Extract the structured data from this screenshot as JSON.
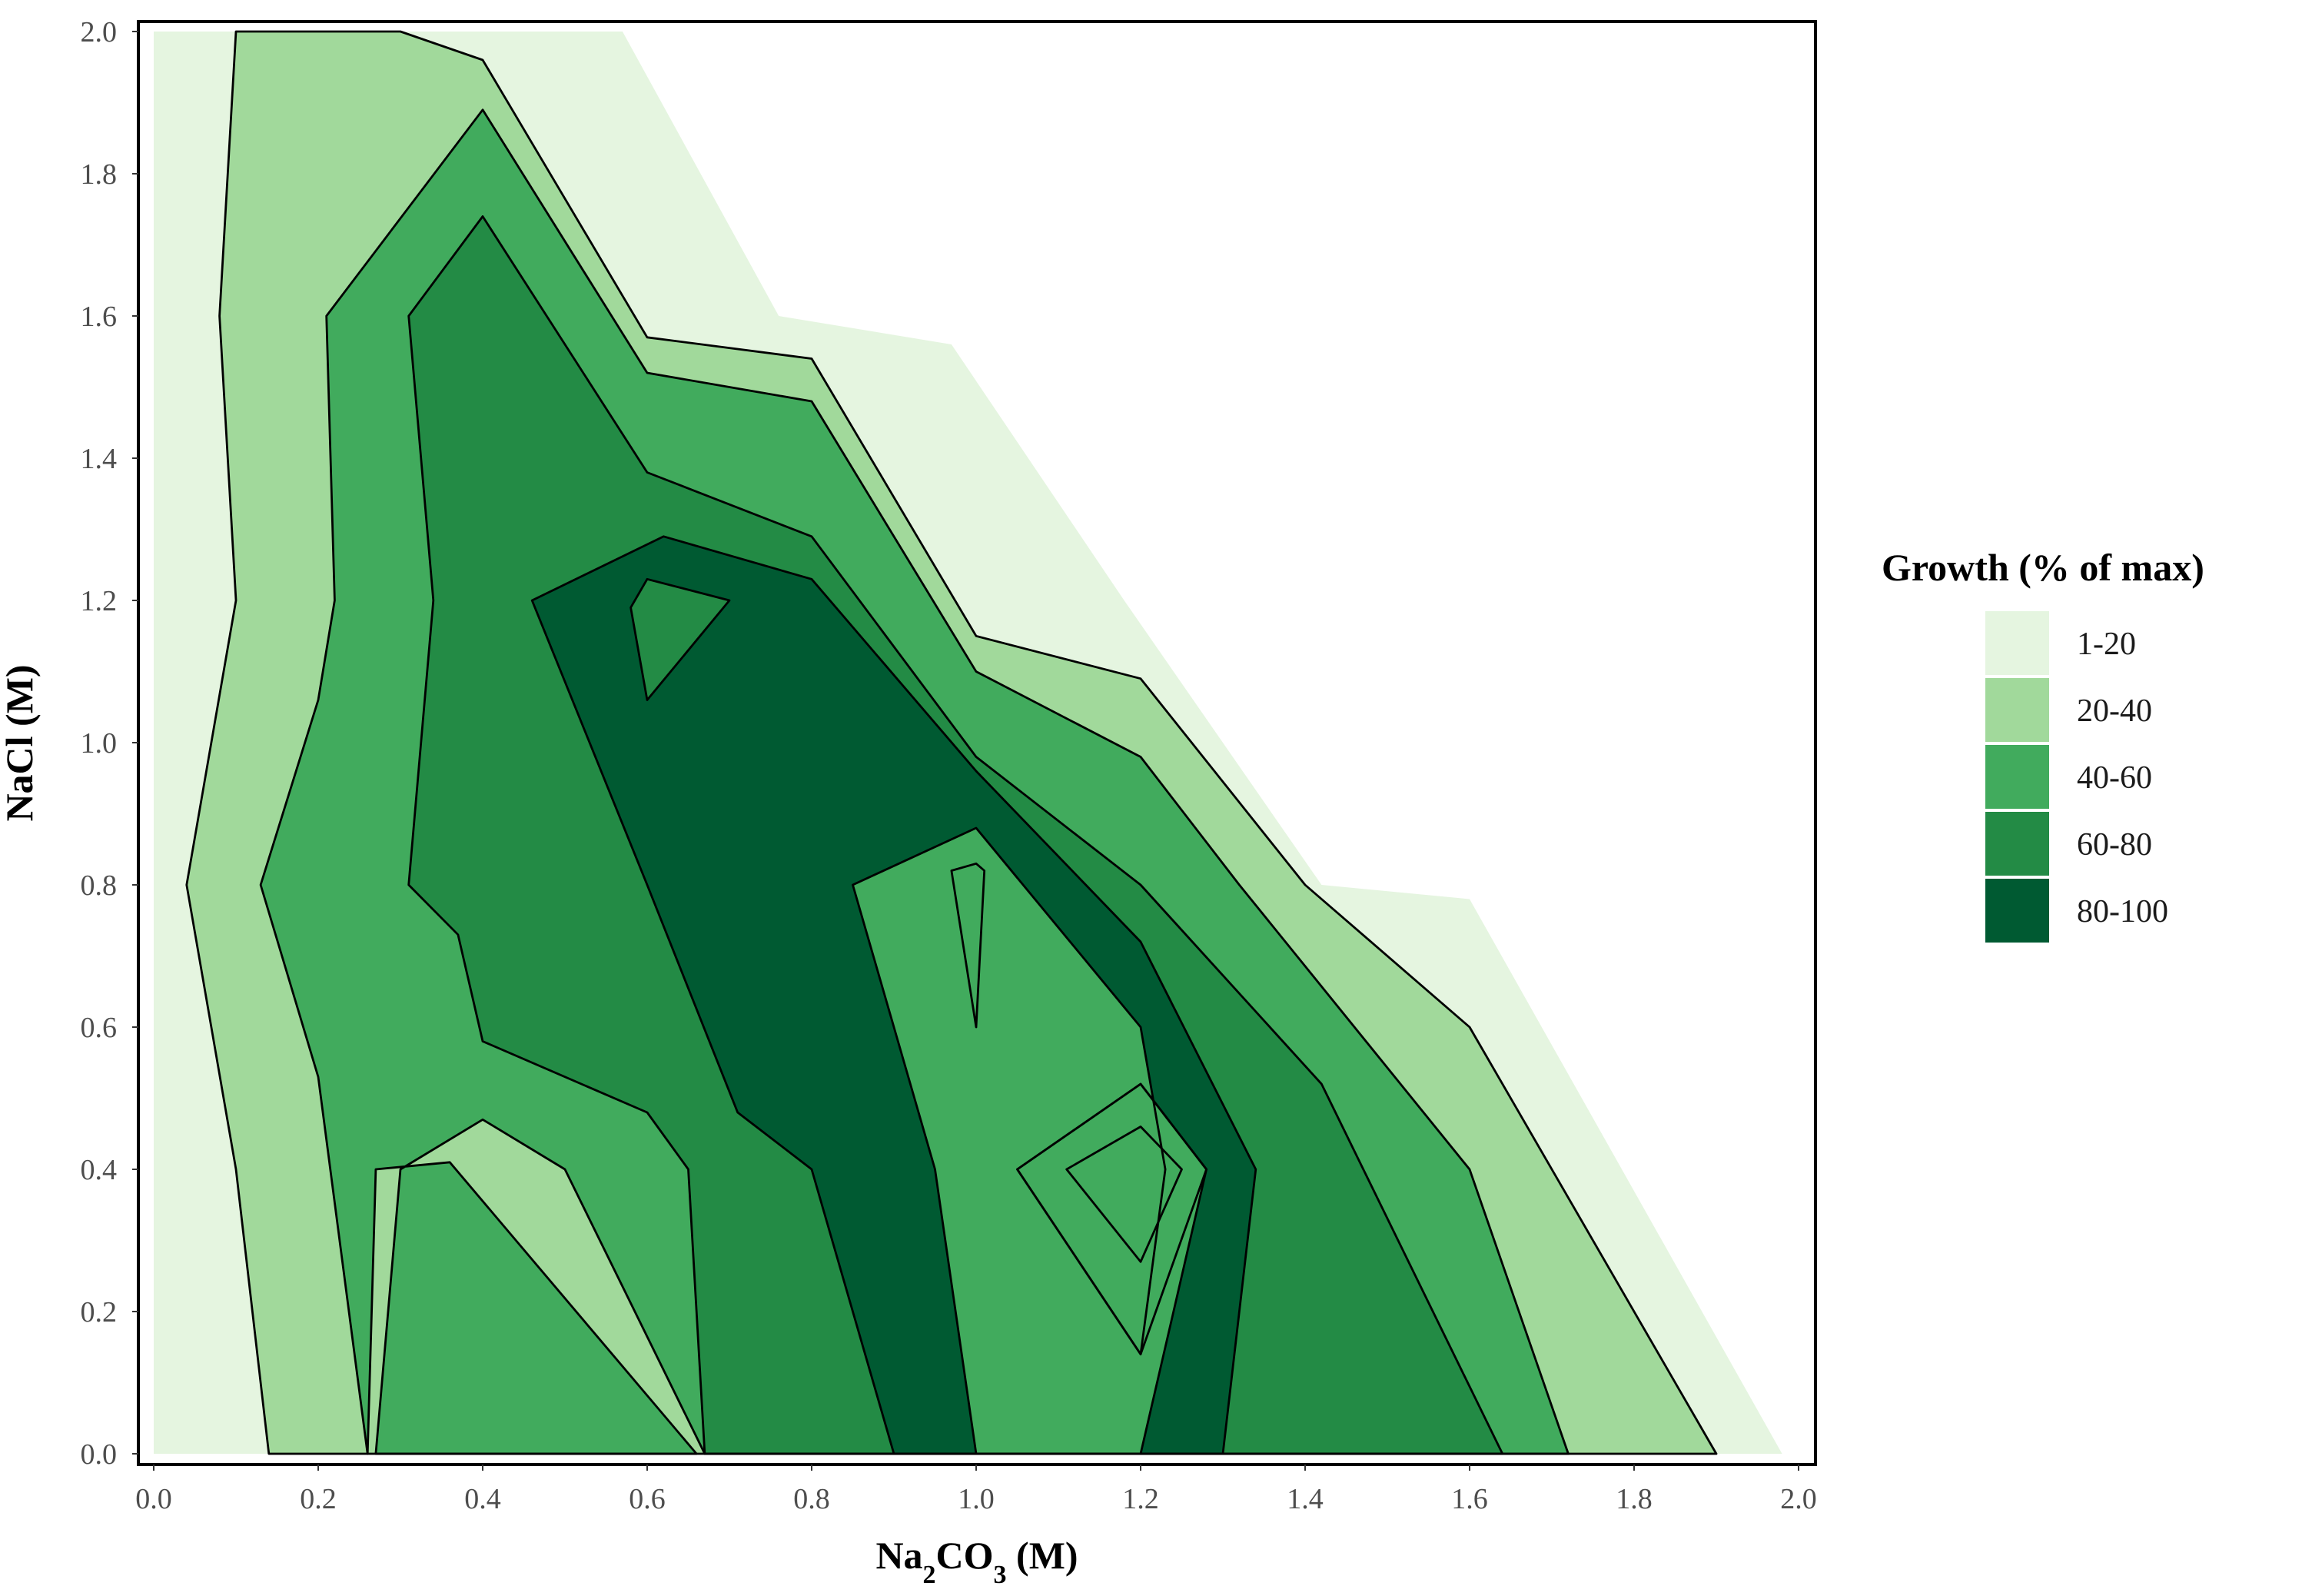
{
  "chart_data": {
    "type": "contour",
    "xlabel_parts": [
      "Na",
      "2",
      "CO",
      "3",
      " (M)"
    ],
    "ylabel": "NaCl (M)",
    "xlim": [
      0.0,
      2.0
    ],
    "ylim": [
      0.0,
      2.0
    ],
    "x_ticks": [
      "0.0",
      "0.2",
      "0.4",
      "0.6",
      "0.8",
      "1.0",
      "1.2",
      "1.4",
      "1.6",
      "1.8",
      "2.0"
    ],
    "y_ticks": [
      "0.0",
      "0.2",
      "0.4",
      "0.6",
      "0.8",
      "1.0",
      "1.2",
      "1.4",
      "1.6",
      "1.8",
      "2.0"
    ],
    "grid": false,
    "legend": {
      "title": "Growth (% of max)",
      "position": "right",
      "levels": [
        {
          "label": "1-20",
          "color": "#e5f5e0"
        },
        {
          "label": "20-40",
          "color": "#a1d99b"
        },
        {
          "label": "40-60",
          "color": "#41ab5d"
        },
        {
          "label": "60-80",
          "color": "#238b45"
        },
        {
          "label": "80-100",
          "color": "#005a32"
        }
      ]
    },
    "bands": [
      {
        "level": "1-20",
        "color": "#e5f5e0",
        "polygons": [
          [
            [
              0.0,
              2.0
            ],
            [
              0.57,
              2.0
            ],
            [
              0.76,
              1.6
            ],
            [
              0.97,
              1.56
            ],
            [
              1.18,
              1.2
            ],
            [
              1.42,
              0.8
            ],
            [
              1.6,
              0.78
            ],
            [
              1.98,
              0.0
            ],
            [
              0.0,
              0.0
            ]
          ]
        ]
      },
      {
        "level": "20-40",
        "color": "#a1d99b",
        "polygons": [
          [
            [
              0.1,
              2.0
            ],
            [
              0.3,
              2.0
            ],
            [
              0.4,
              1.96
            ],
            [
              0.6,
              1.57
            ],
            [
              0.8,
              1.54
            ],
            [
              1.0,
              1.15
            ],
            [
              1.2,
              1.09
            ],
            [
              1.4,
              0.8
            ],
            [
              1.6,
              0.6
            ],
            [
              1.9,
              0.0
            ],
            [
              0.14,
              0.0
            ],
            [
              0.1,
              0.4
            ],
            [
              0.04,
              0.8
            ],
            [
              0.1,
              1.2
            ],
            [
              0.08,
              1.6
            ]
          ]
        ]
      },
      {
        "level": "40-60",
        "color": "#41ab5d",
        "polygons": [
          [
            [
              0.4,
              1.89
            ],
            [
              0.6,
              1.52
            ],
            [
              0.8,
              1.48
            ],
            [
              1.0,
              1.1
            ],
            [
              1.2,
              0.98
            ],
            [
              1.32,
              0.8
            ],
            [
              1.6,
              0.4
            ],
            [
              1.72,
              0.0
            ],
            [
              0.67,
              0.0
            ],
            [
              0.5,
              0.4
            ],
            [
              0.4,
              0.47
            ],
            [
              0.3,
              0.4
            ],
            [
              0.27,
              0.0
            ],
            [
              0.66,
              0.0
            ],
            [
              0.36,
              0.41
            ],
            [
              0.27,
              0.4
            ],
            [
              0.26,
              0.0
            ],
            [
              0.2,
              0.53
            ],
            [
              0.13,
              0.8
            ],
            [
              0.2,
              1.06
            ],
            [
              0.22,
              1.2
            ],
            [
              0.21,
              1.6
            ]
          ]
        ]
      },
      {
        "level": "60-80",
        "color": "#238b45",
        "polygons": [
          [
            [
              0.4,
              1.74
            ],
            [
              0.6,
              1.38
            ],
            [
              0.8,
              1.29
            ],
            [
              1.0,
              0.98
            ],
            [
              1.2,
              0.8
            ],
            [
              1.42,
              0.52
            ],
            [
              1.64,
              0.0
            ],
            [
              0.67,
              0.0
            ],
            [
              0.65,
              0.4
            ],
            [
              0.6,
              0.48
            ],
            [
              0.4,
              0.58
            ],
            [
              0.37,
              0.73
            ],
            [
              0.31,
              0.8
            ],
            [
              0.34,
              1.2
            ],
            [
              0.31,
              1.6
            ]
          ]
        ]
      },
      {
        "level": "80-100",
        "color": "#005a32",
        "polygons": [
          [
            [
              0.46,
              1.2
            ],
            [
              0.62,
              1.29
            ],
            [
              0.8,
              1.23
            ],
            [
              1.0,
              0.96
            ],
            [
              1.2,
              0.72
            ],
            [
              1.34,
              0.4
            ],
            [
              1.3,
              0.0
            ],
            [
              0.9,
              0.0
            ],
            [
              0.8,
              0.4
            ],
            [
              0.71,
              0.48
            ],
            [
              0.6,
              0.8
            ]
          ]
        ]
      }
    ],
    "core_regions": [
      {
        "level": "80-100",
        "color": "#005a32",
        "polygons": [
          [
            [
              0.97,
              0.82
            ],
            [
              1.0,
              0.83
            ],
            [
              1.01,
              0.82
            ],
            [
              1.0,
              0.6
            ]
          ],
          [
            [
              1.05,
              0.4
            ],
            [
              1.2,
              0.52
            ],
            [
              1.28,
              0.4
            ],
            [
              1.2,
              0.14
            ]
          ],
          [
            [
              1.11,
              0.4
            ],
            [
              1.2,
              0.46
            ],
            [
              1.25,
              0.4
            ],
            [
              1.2,
              0.27
            ]
          ]
        ]
      },
      {
        "level": "60-80",
        "color": "#238b45",
        "polygons": [
          [
            [
              0.58,
              1.19
            ],
            [
              0.6,
              1.23
            ],
            [
              0.7,
              1.2
            ],
            [
              0.6,
              1.06
            ]
          ]
        ]
      },
      {
        "level": "40-60",
        "color": "#41ab5d",
        "polygons": [
          [
            [
              0.85,
              0.8
            ],
            [
              1.0,
              0.88
            ],
            [
              1.05,
              0.81
            ],
            [
              1.2,
              0.6
            ],
            [
              1.23,
              0.4
            ],
            [
              1.2,
              0.14
            ],
            [
              1.05,
              0.4
            ],
            [
              1.2,
              0.52
            ],
            [
              1.28,
              0.4
            ],
            [
              1.2,
              0.0
            ],
            [
              1.0,
              0.0
            ],
            [
              0.95,
              0.4
            ]
          ]
        ]
      }
    ]
  }
}
